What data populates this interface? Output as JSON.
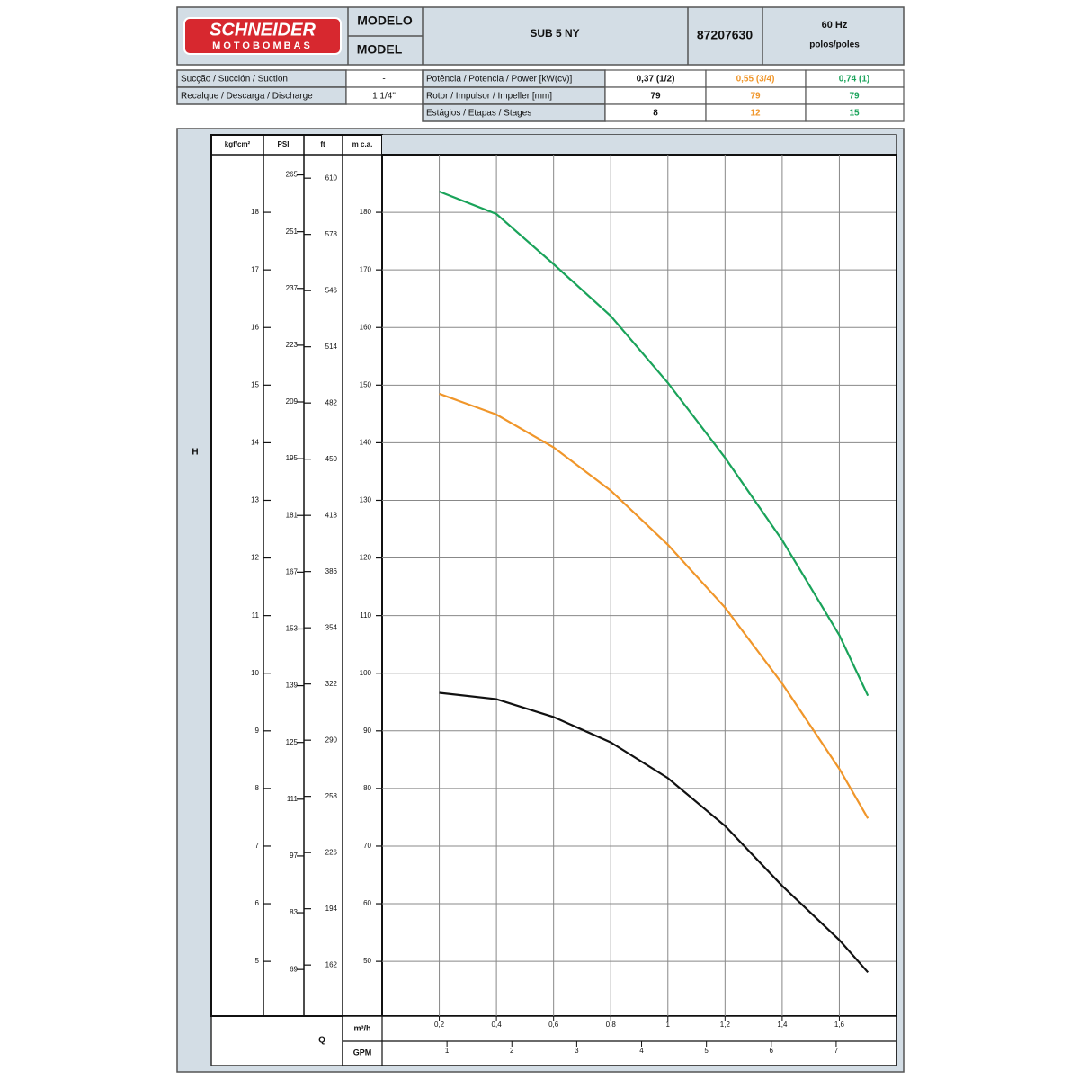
{
  "header": {
    "brand": "SCHNEIDER",
    "brand_sub": "MOTOBOMBAS",
    "model_label_pt": "MODELO",
    "model_label_en": "MODEL",
    "model": "SUB 5 NY",
    "code": "87207630",
    "frequency": "60 Hz",
    "poles": "polos/poles"
  },
  "specs": {
    "suction_label": "Sucção / Succión / Suction",
    "suction": "-",
    "discharge_label": "Recalque / Descarga / Discharge",
    "discharge": "1 1/4\"",
    "power_label": "Potência / Potencia / Power [kW(cv)]",
    "impeller_label": "Rotor / Impulsor / Impeller [mm]",
    "impeller": [
      "79",
      "79",
      "79"
    ],
    "stages_label": "Estágios / Etapas / Stages",
    "stages": [
      "8",
      "12",
      "15"
    ]
  },
  "chart_data": {
    "type": "line",
    "grid": true,
    "y_label": "H",
    "ylabel": "m c.a.",
    "q_label": "Q",
    "xlabel": "m³/h",
    "x2label": "GPM",
    "xlim": [
      0,
      1.8
    ],
    "xticks": [
      {
        "value": 0.2,
        "label": "0,2"
      },
      {
        "value": 0.4,
        "label": "0,4"
      },
      {
        "value": 0.6,
        "label": "0,6"
      },
      {
        "value": 0.8,
        "label": "0,8"
      },
      {
        "value": 1,
        "label": "1"
      },
      {
        "value": 1.2,
        "label": "1,2"
      },
      {
        "value": 1.4,
        "label": "1,4"
      },
      {
        "value": 1.6,
        "label": "1,6"
      }
    ],
    "x2lim": [
      0,
      7.93
    ],
    "x2ticks": [
      1,
      2,
      3,
      4,
      5,
      6,
      7
    ],
    "ylim": [
      40.5,
      190
    ],
    "yticks": [
      50,
      60,
      70,
      80,
      90,
      100,
      110,
      120,
      130,
      140,
      150,
      160,
      170,
      180
    ],
    "kgf": {
      "label": "kgf/cm²",
      "lim": [
        4.05,
        19
      ],
      "ticks": [
        5,
        6,
        7,
        8,
        9,
        10,
        11,
        12,
        13,
        14,
        15,
        16,
        17,
        18
      ]
    },
    "psi": {
      "label": "PSI",
      "lim": [
        57.5,
        270
      ],
      "ticks": [
        69,
        83,
        97,
        111,
        125,
        139,
        153,
        167,
        181,
        195,
        209,
        223,
        237,
        251,
        265
      ]
    },
    "ft": {
      "label": "ft",
      "lim": [
        132.9,
        623.4
      ],
      "ticks": [
        162,
        194,
        226,
        258,
        290,
        322,
        354,
        386,
        418,
        450,
        482,
        514,
        546,
        578,
        610
      ]
    },
    "x": [
      0.2,
      0.4,
      0.6,
      0.8,
      1.0,
      1.2,
      1.4,
      1.6,
      1.7
    ],
    "series": [
      {
        "name": "0,37 (1/2)",
        "color": "#111111",
        "values": [
          96.6,
          95.5,
          92.4,
          88.0,
          81.8,
          73.5,
          63.1,
          53.7,
          48.1
        ]
      },
      {
        "name": "0,55 (3/4)",
        "color": "#f0962a",
        "values": [
          148.5,
          144.9,
          139.2,
          131.7,
          122.3,
          111.4,
          98.2,
          83.4,
          74.8
        ]
      },
      {
        "name": "0,74 (1)",
        "color": "#1aa35a",
        "values": [
          183.6,
          179.7,
          171.0,
          162.0,
          150.4,
          137.4,
          123.1,
          106.6,
          96.1
        ]
      }
    ]
  }
}
